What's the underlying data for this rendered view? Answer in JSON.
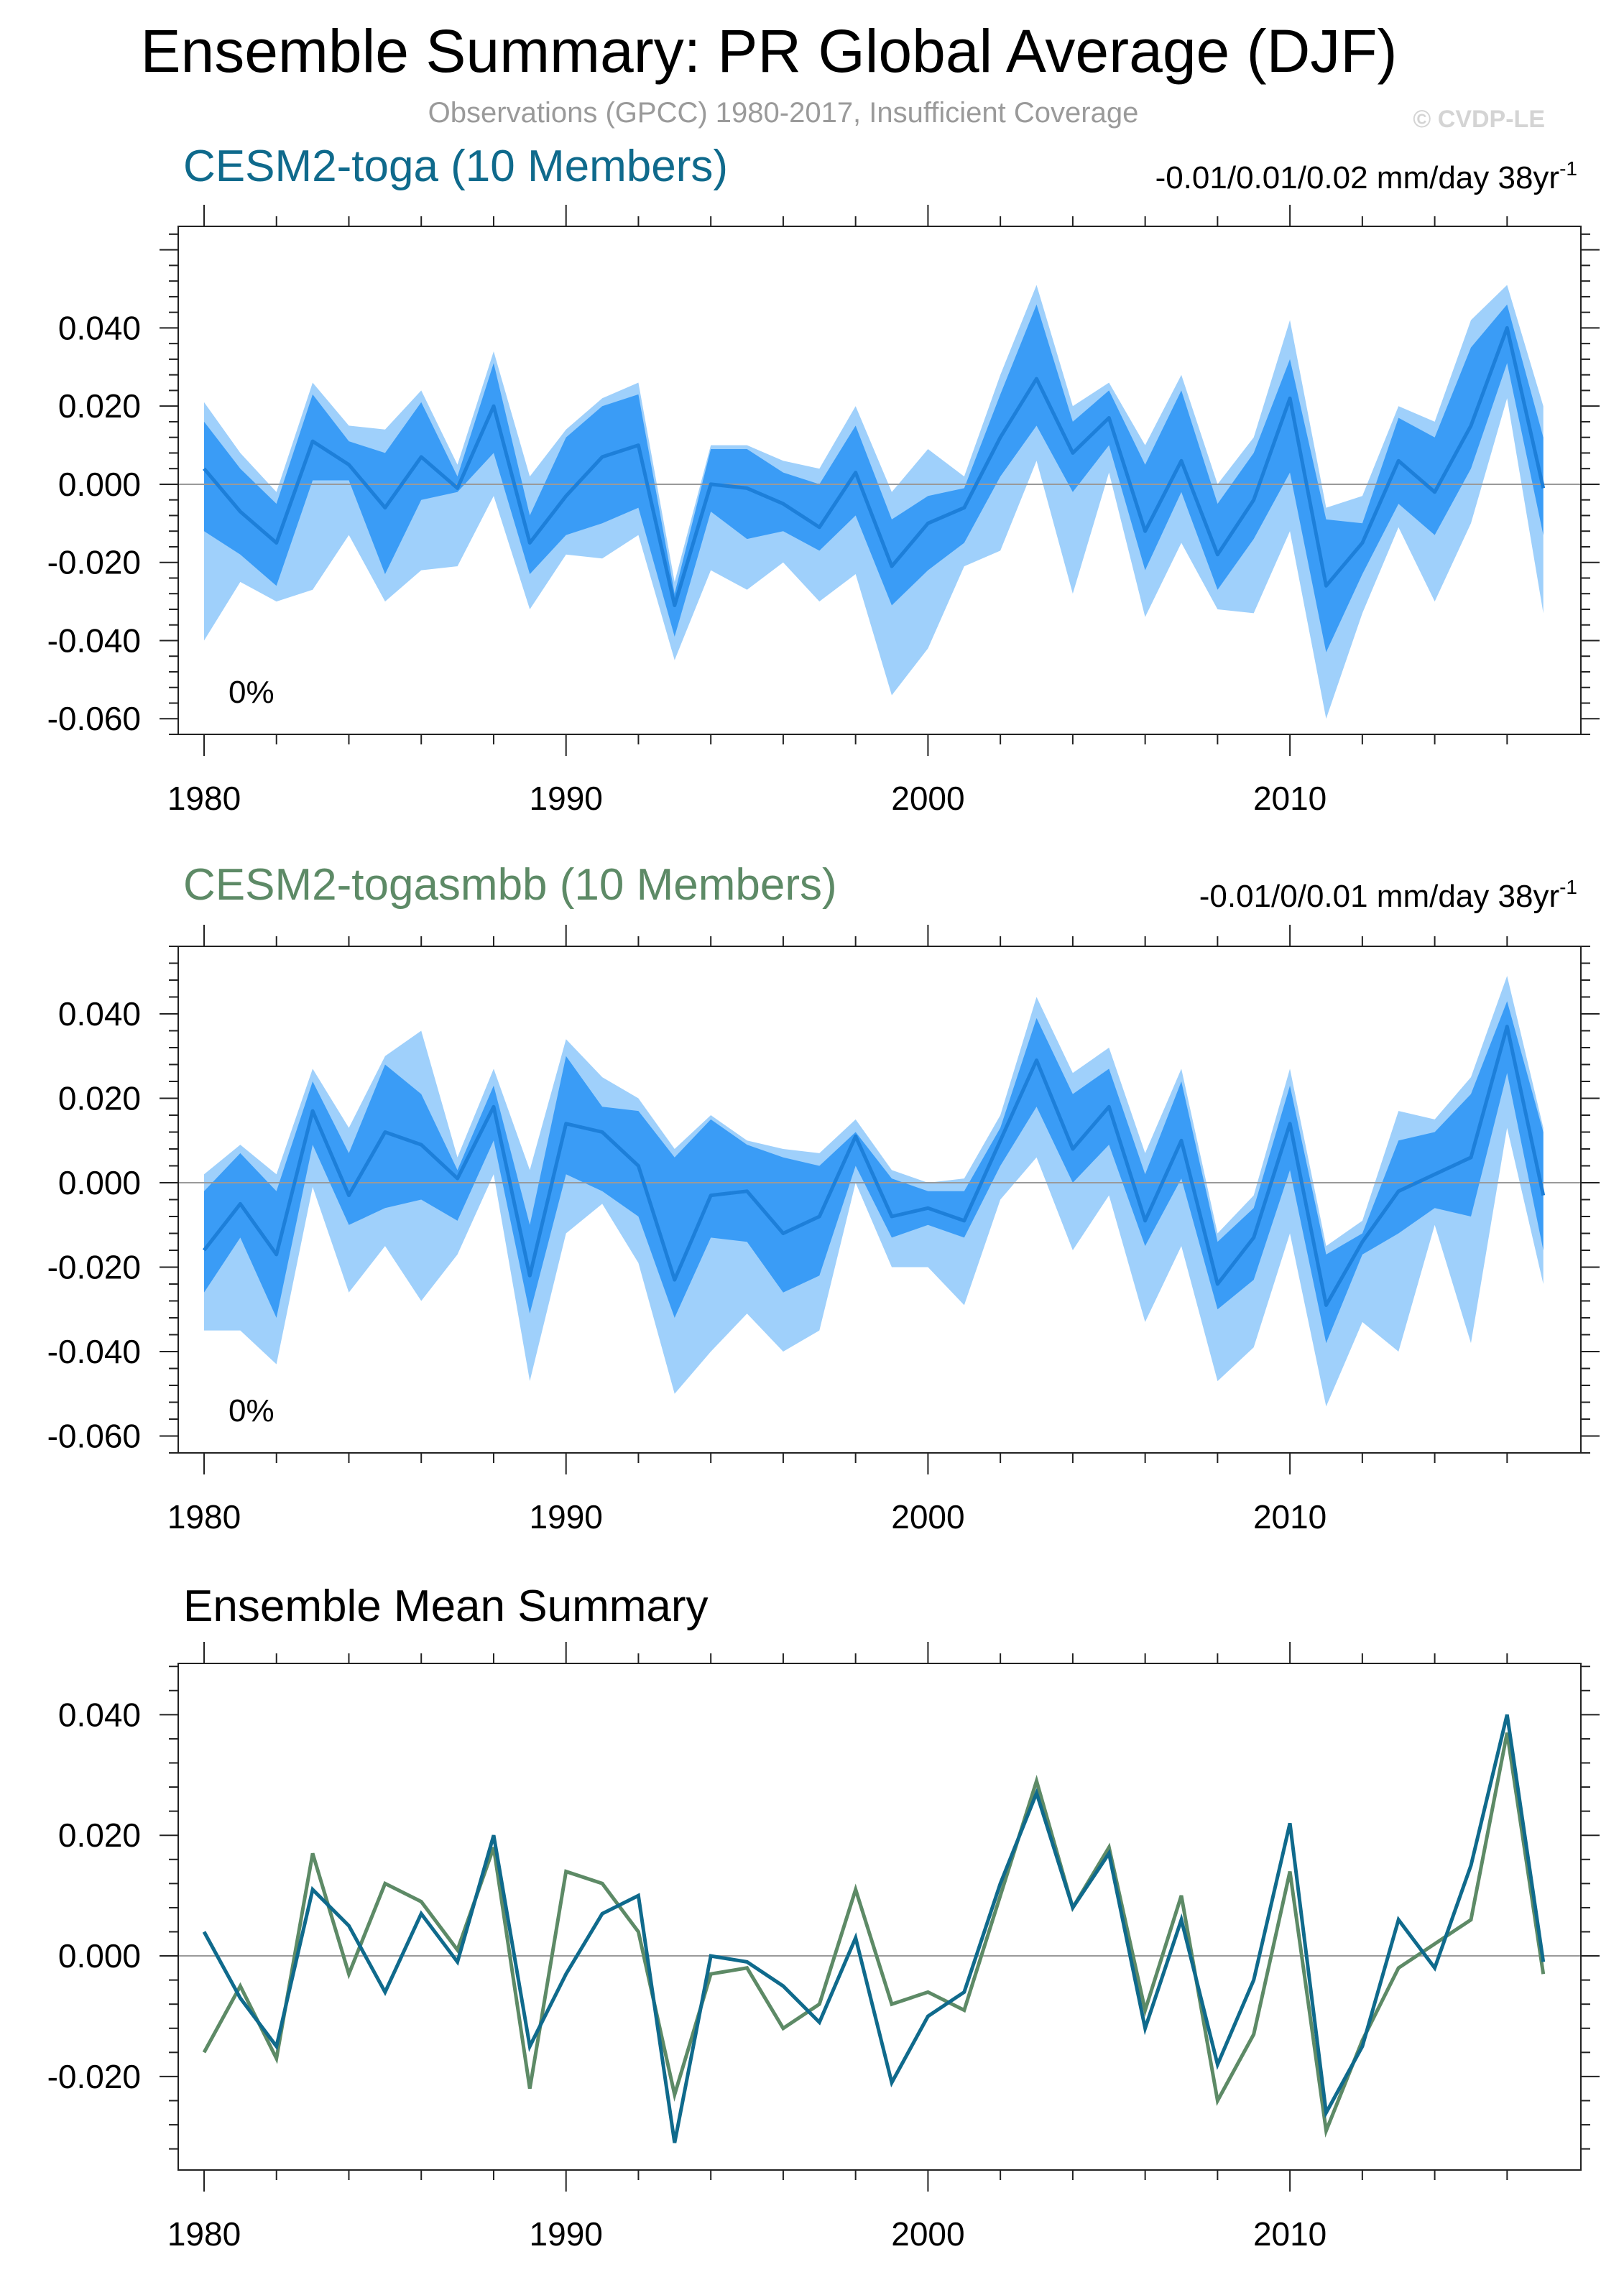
{
  "figure": {
    "title": "Ensemble Summary: PR Global Average (DJF)",
    "subtitle": "Observations (GPCC) 1980-2017, Insufficient Coverage",
    "copyright": "© CVDP-LE"
  },
  "colors": {
    "toga": "#0f6a8c",
    "togasmbb": "#5d8a66",
    "band_outer": "#9fd0fb",
    "band_inner": "#3a9cf6",
    "band_mean": "#1d7fd9",
    "zero_line": "#9a9a9a"
  },
  "chart_data": [
    {
      "type": "area",
      "title": "CESM2-toga (10 Members)",
      "trend_label": "-0.01/0.01/0.02 mm/day 38yr",
      "trend_exp": "-1",
      "percent_label": "0%",
      "x": [
        1980,
        1981,
        1982,
        1983,
        1984,
        1985,
        1986,
        1987,
        1988,
        1989,
        1990,
        1991,
        1992,
        1993,
        1994,
        1995,
        1996,
        1997,
        1998,
        1999,
        2000,
        2001,
        2002,
        2003,
        2004,
        2005,
        2006,
        2007,
        2008,
        2009,
        2010,
        2011,
        2012,
        2013,
        2014,
        2015,
        2016,
        2017
      ],
      "xlim": [
        1980,
        2017.8
      ],
      "ylim": [
        -0.064,
        0.066
      ],
      "yticks": [
        0.04,
        0.02,
        0.0,
        -0.02,
        -0.04,
        -0.06
      ],
      "ytick_labels": [
        "0.040",
        "0.020",
        "0.000",
        "-0.020",
        "-0.040",
        "-0.060"
      ],
      "xticks": [
        1980,
        1990,
        2000,
        2010
      ],
      "xtick_labels": [
        "1980",
        "1990",
        "2000",
        "2010"
      ],
      "series": [
        {
          "name": "outer_max",
          "values": [
            0.021,
            0.008,
            -0.002,
            0.026,
            0.015,
            0.014,
            0.024,
            0.005,
            0.034,
            0.002,
            0.014,
            0.022,
            0.026,
            -0.025,
            0.01,
            0.01,
            0.006,
            0.004,
            0.02,
            -0.002,
            0.009,
            0.002,
            0.028,
            0.051,
            0.02,
            0.026,
            0.01,
            0.028,
            0.0,
            0.012,
            0.042,
            -0.006,
            -0.003,
            0.02,
            0.016,
            0.042,
            0.051,
            0.02
          ]
        },
        {
          "name": "inner_max",
          "values": [
            0.016,
            0.004,
            -0.005,
            0.023,
            0.011,
            0.008,
            0.021,
            0.002,
            0.031,
            -0.008,
            0.012,
            0.02,
            0.023,
            -0.028,
            0.009,
            0.009,
            0.003,
            0.0,
            0.015,
            -0.009,
            -0.003,
            -0.001,
            0.023,
            0.046,
            0.016,
            0.024,
            0.005,
            0.024,
            -0.005,
            0.008,
            0.032,
            -0.009,
            -0.01,
            0.017,
            0.012,
            0.035,
            0.046,
            0.012
          ]
        },
        {
          "name": "mean",
          "values": [
            0.004,
            -0.007,
            -0.015,
            0.011,
            0.005,
            -0.006,
            0.007,
            -0.001,
            0.02,
            -0.015,
            -0.003,
            0.007,
            0.01,
            -0.031,
            0.0,
            -0.001,
            -0.005,
            -0.011,
            0.003,
            -0.021,
            -0.01,
            -0.006,
            0.012,
            0.027,
            0.008,
            0.017,
            -0.012,
            0.006,
            -0.018,
            -0.004,
            0.022,
            -0.026,
            -0.015,
            0.006,
            -0.002,
            0.015,
            0.04,
            -0.001
          ]
        },
        {
          "name": "inner_min",
          "values": [
            -0.012,
            -0.018,
            -0.026,
            0.001,
            0.001,
            -0.023,
            -0.004,
            -0.002,
            0.008,
            -0.023,
            -0.013,
            -0.01,
            -0.006,
            -0.039,
            -0.007,
            -0.014,
            -0.012,
            -0.017,
            -0.008,
            -0.031,
            -0.022,
            -0.015,
            0.002,
            0.015,
            -0.002,
            0.01,
            -0.022,
            -0.002,
            -0.027,
            -0.014,
            0.003,
            -0.043,
            -0.023,
            -0.005,
            -0.013,
            0.004,
            0.031,
            -0.013
          ]
        },
        {
          "name": "outer_min",
          "values": [
            -0.04,
            -0.025,
            -0.03,
            -0.027,
            -0.013,
            -0.03,
            -0.022,
            -0.021,
            -0.003,
            -0.032,
            -0.018,
            -0.019,
            -0.013,
            -0.045,
            -0.022,
            -0.027,
            -0.02,
            -0.03,
            -0.023,
            -0.054,
            -0.042,
            -0.021,
            -0.017,
            0.006,
            -0.028,
            0.003,
            -0.034,
            -0.015,
            -0.032,
            -0.033,
            -0.012,
            -0.06,
            -0.033,
            -0.011,
            -0.03,
            -0.01,
            0.022,
            -0.033
          ]
        }
      ]
    },
    {
      "type": "area",
      "title": "CESM2-togasmbb (10 Members)",
      "trend_label": "-0.01/0/0.01 mm/day 38yr",
      "trend_exp": "-1",
      "percent_label": "0%",
      "x": [
        1980,
        1981,
        1982,
        1983,
        1984,
        1985,
        1986,
        1987,
        1988,
        1989,
        1990,
        1991,
        1992,
        1993,
        1994,
        1995,
        1996,
        1997,
        1998,
        1999,
        2000,
        2001,
        2002,
        2003,
        2004,
        2005,
        2006,
        2007,
        2008,
        2009,
        2010,
        2011,
        2012,
        2013,
        2014,
        2015,
        2016,
        2017
      ],
      "xlim": [
        1980,
        2017.8
      ],
      "ylim": [
        -0.064,
        0.056
      ],
      "yticks": [
        0.04,
        0.02,
        0.0,
        -0.02,
        -0.04,
        -0.06
      ],
      "ytick_labels": [
        "0.040",
        "0.020",
        "0.000",
        "-0.020",
        "-0.040",
        "-0.060"
      ],
      "xticks": [
        1980,
        1990,
        2000,
        2010
      ],
      "xtick_labels": [
        "1980",
        "1990",
        "2000",
        "2010"
      ],
      "series": [
        {
          "name": "outer_max",
          "values": [
            0.002,
            0.009,
            0.002,
            0.027,
            0.013,
            0.03,
            0.036,
            0.006,
            0.027,
            0.003,
            0.034,
            0.025,
            0.02,
            0.008,
            0.016,
            0.01,
            0.008,
            0.007,
            0.015,
            0.003,
            0.0,
            0.001,
            0.016,
            0.044,
            0.026,
            0.032,
            0.007,
            0.027,
            -0.012,
            -0.003,
            0.027,
            -0.015,
            -0.009,
            0.017,
            0.015,
            0.025,
            0.049,
            0.013
          ]
        },
        {
          "name": "inner_max",
          "values": [
            -0.002,
            0.007,
            -0.002,
            0.024,
            0.007,
            0.028,
            0.021,
            0.003,
            0.023,
            -0.01,
            0.03,
            0.018,
            0.017,
            0.006,
            0.015,
            0.009,
            0.006,
            0.004,
            0.012,
            0.001,
            -0.002,
            -0.002,
            0.013,
            0.039,
            0.021,
            0.027,
            0.002,
            0.024,
            -0.014,
            -0.006,
            0.023,
            -0.017,
            -0.012,
            0.01,
            0.012,
            0.021,
            0.043,
            0.012
          ]
        },
        {
          "name": "mean",
          "values": [
            -0.016,
            -0.005,
            -0.017,
            0.017,
            -0.003,
            0.012,
            0.009,
            0.001,
            0.018,
            -0.022,
            0.014,
            0.012,
            0.004,
            -0.023,
            -0.003,
            -0.002,
            -0.012,
            -0.008,
            0.011,
            -0.008,
            -0.006,
            -0.009,
            0.01,
            0.029,
            0.008,
            0.018,
            -0.009,
            0.01,
            -0.024,
            -0.013,
            0.014,
            -0.029,
            -0.014,
            -0.002,
            0.002,
            0.006,
            0.037,
            -0.003
          ]
        },
        {
          "name": "inner_min",
          "values": [
            -0.026,
            -0.013,
            -0.032,
            0.009,
            -0.01,
            -0.006,
            -0.004,
            -0.009,
            0.01,
            -0.031,
            0.002,
            -0.002,
            -0.008,
            -0.032,
            -0.013,
            -0.014,
            -0.026,
            -0.022,
            0.004,
            -0.013,
            -0.01,
            -0.013,
            0.004,
            0.018,
            0.0,
            0.009,
            -0.015,
            0.001,
            -0.03,
            -0.023,
            0.003,
            -0.038,
            -0.017,
            -0.012,
            -0.006,
            -0.008,
            0.026,
            -0.016
          ]
        },
        {
          "name": "outer_min",
          "values": [
            -0.035,
            -0.035,
            -0.043,
            -0.001,
            -0.026,
            -0.015,
            -0.028,
            -0.017,
            0.002,
            -0.047,
            -0.012,
            -0.005,
            -0.019,
            -0.05,
            -0.04,
            -0.031,
            -0.04,
            -0.035,
            0.0,
            -0.02,
            -0.02,
            -0.029,
            -0.004,
            0.006,
            -0.016,
            -0.003,
            -0.033,
            -0.015,
            -0.047,
            -0.039,
            -0.012,
            -0.053,
            -0.033,
            -0.04,
            -0.01,
            -0.038,
            0.013,
            -0.024
          ]
        }
      ]
    },
    {
      "type": "line",
      "title": "Ensemble Mean Summary",
      "x": [
        1980,
        1981,
        1982,
        1983,
        1984,
        1985,
        1986,
        1987,
        1988,
        1989,
        1990,
        1991,
        1992,
        1993,
        1994,
        1995,
        1996,
        1997,
        1998,
        1999,
        2000,
        2001,
        2002,
        2003,
        2004,
        2005,
        2006,
        2007,
        2008,
        2009,
        2010,
        2011,
        2012,
        2013,
        2014,
        2015,
        2016,
        2017
      ],
      "xlim": [
        1980,
        2017.8
      ],
      "ylim": [
        -0.0355,
        0.0485
      ],
      "yticks": [
        0.04,
        0.02,
        0.0,
        -0.02
      ],
      "ytick_labels": [
        "0.040",
        "0.020",
        "0.000",
        "-0.020"
      ],
      "xticks": [
        1980,
        1990,
        2000,
        2010
      ],
      "xtick_labels": [
        "1980",
        "1990",
        "2000",
        "2010"
      ],
      "series": [
        {
          "name": "CESM2-toga",
          "values": [
            0.004,
            -0.007,
            -0.015,
            0.011,
            0.005,
            -0.006,
            0.007,
            -0.001,
            0.02,
            -0.015,
            -0.003,
            0.007,
            0.01,
            -0.031,
            0.0,
            -0.001,
            -0.005,
            -0.011,
            0.003,
            -0.021,
            -0.01,
            -0.006,
            0.012,
            0.027,
            0.008,
            0.017,
            -0.012,
            0.006,
            -0.018,
            -0.004,
            0.022,
            -0.026,
            -0.015,
            0.006,
            -0.002,
            0.015,
            0.04,
            -0.001
          ]
        },
        {
          "name": "CESM2-togasmbb",
          "values": [
            -0.016,
            -0.005,
            -0.017,
            0.017,
            -0.003,
            0.012,
            0.009,
            0.001,
            0.018,
            -0.022,
            0.014,
            0.012,
            0.004,
            -0.023,
            -0.003,
            -0.002,
            -0.012,
            -0.008,
            0.011,
            -0.008,
            -0.006,
            -0.009,
            0.01,
            0.029,
            0.008,
            0.018,
            -0.009,
            0.01,
            -0.024,
            -0.013,
            0.014,
            -0.029,
            -0.014,
            -0.002,
            0.002,
            0.006,
            0.037,
            -0.003
          ]
        }
      ]
    }
  ]
}
